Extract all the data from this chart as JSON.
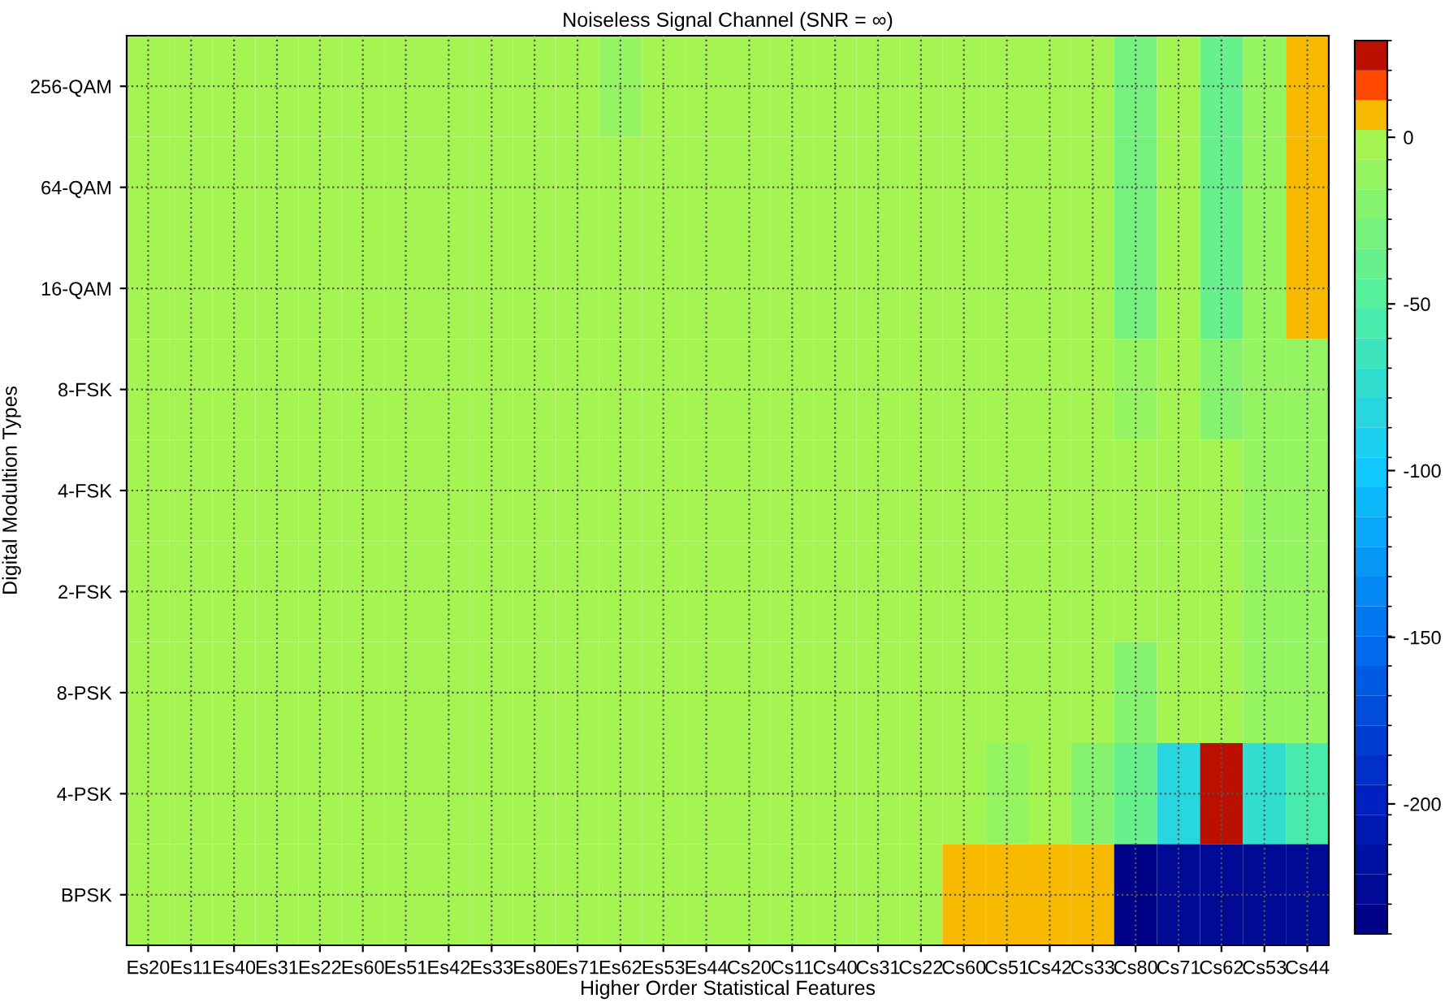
{
  "chart_data": {
    "type": "heatmap",
    "title": "Noiseless Signal Channel (SNR = ∞)",
    "xlabel": "Higher Order Statistical Features",
    "ylabel": "Digital Modultion Types",
    "categories": [
      "Es20",
      "Es11",
      "Es40",
      "Es31",
      "Es22",
      "Es60",
      "Es51",
      "Es42",
      "Es33",
      "Es80",
      "Es71",
      "Es62",
      "Es53",
      "Es44",
      "Cs20",
      "Cs11",
      "Cs40",
      "Cs31",
      "Cs22",
      "Cs60",
      "Cs51",
      "Cs42",
      "Cs33",
      "Cs80",
      "Cs71",
      "Cs62",
      "Cs53",
      "Cs44"
    ],
    "y_categories": [
      "256-QAM",
      "64-QAM",
      "16-QAM",
      "8-FSK",
      "4-FSK",
      "2-FSK",
      "8-PSK",
      "4-PSK",
      "BPSK"
    ],
    "cells": [
      [
        -5,
        -5,
        -5,
        -5,
        -5,
        -5,
        -5,
        -5,
        -5,
        -5,
        -5,
        -15,
        -5,
        -5,
        -5,
        -5,
        -5,
        -5,
        -5,
        -5,
        -5,
        -5,
        -5,
        -25,
        -6,
        -40,
        -8,
        10
      ],
      [
        -5,
        -5,
        -5,
        -5,
        -5,
        -5,
        -5,
        -5,
        -5,
        -5,
        -5,
        -5,
        -5,
        -5,
        -5,
        -5,
        -5,
        -5,
        -5,
        -5,
        -5,
        -5,
        -5,
        -25,
        -6,
        -40,
        -8,
        10
      ],
      [
        -5,
        -5,
        -5,
        -5,
        -5,
        -5,
        -5,
        -5,
        -5,
        -5,
        -5,
        -5,
        -5,
        -5,
        -5,
        -5,
        -5,
        -5,
        -5,
        -5,
        -5,
        -5,
        -5,
        -25,
        -6,
        -40,
        -8,
        5
      ],
      [
        -5,
        -5,
        -5,
        -5,
        -5,
        -5,
        -5,
        -5,
        -5,
        -5,
        -5,
        -5,
        -5,
        -5,
        -5,
        -5,
        -5,
        -5,
        -5,
        -5,
        -5,
        -5,
        -5,
        -8,
        -6,
        -22,
        -8,
        -15
      ],
      [
        -5,
        -5,
        -5,
        -5,
        -5,
        -5,
        -5,
        -5,
        -5,
        -5,
        -5,
        -5,
        -5,
        -5,
        -5,
        -5,
        -5,
        -5,
        -5,
        -5,
        -5,
        -5,
        -5,
        -5,
        -5,
        -5,
        -15,
        -15
      ],
      [
        -5,
        -5,
        -5,
        -5,
        -5,
        -5,
        -5,
        -5,
        -5,
        -5,
        -5,
        -5,
        -5,
        -5,
        -5,
        -5,
        -5,
        -5,
        -5,
        -5,
        -5,
        -5,
        -5,
        -5,
        -5,
        -5,
        -15,
        -15
      ],
      [
        -5,
        -5,
        -5,
        -5,
        -5,
        -5,
        -5,
        -5,
        -5,
        -5,
        -5,
        -5,
        -5,
        -5,
        -5,
        -5,
        -5,
        -5,
        -5,
        -5,
        -5,
        -5,
        -5,
        -20,
        -5,
        -5,
        -15,
        -15
      ],
      [
        -5,
        -5,
        -5,
        -5,
        -5,
        -5,
        -5,
        -5,
        -5,
        -5,
        -5,
        -5,
        -5,
        -5,
        -5,
        -5,
        -5,
        -5,
        -5,
        -5,
        -15,
        -5,
        -20,
        -40,
        -80,
        25,
        -70,
        -60
      ],
      [
        -5,
        -5,
        -5,
        -5,
        -5,
        -5,
        -5,
        -5,
        -5,
        -5,
        -5,
        -5,
        -5,
        -5,
        -5,
        -5,
        -5,
        -5,
        -5,
        8,
        8,
        8,
        8,
        -239,
        -230,
        -225,
        -230,
        -230
      ]
    ],
    "clim": [
      -239,
      29
    ],
    "cticks": [
      0,
      -50,
      -100,
      -150,
      -200
    ],
    "grid": true
  }
}
